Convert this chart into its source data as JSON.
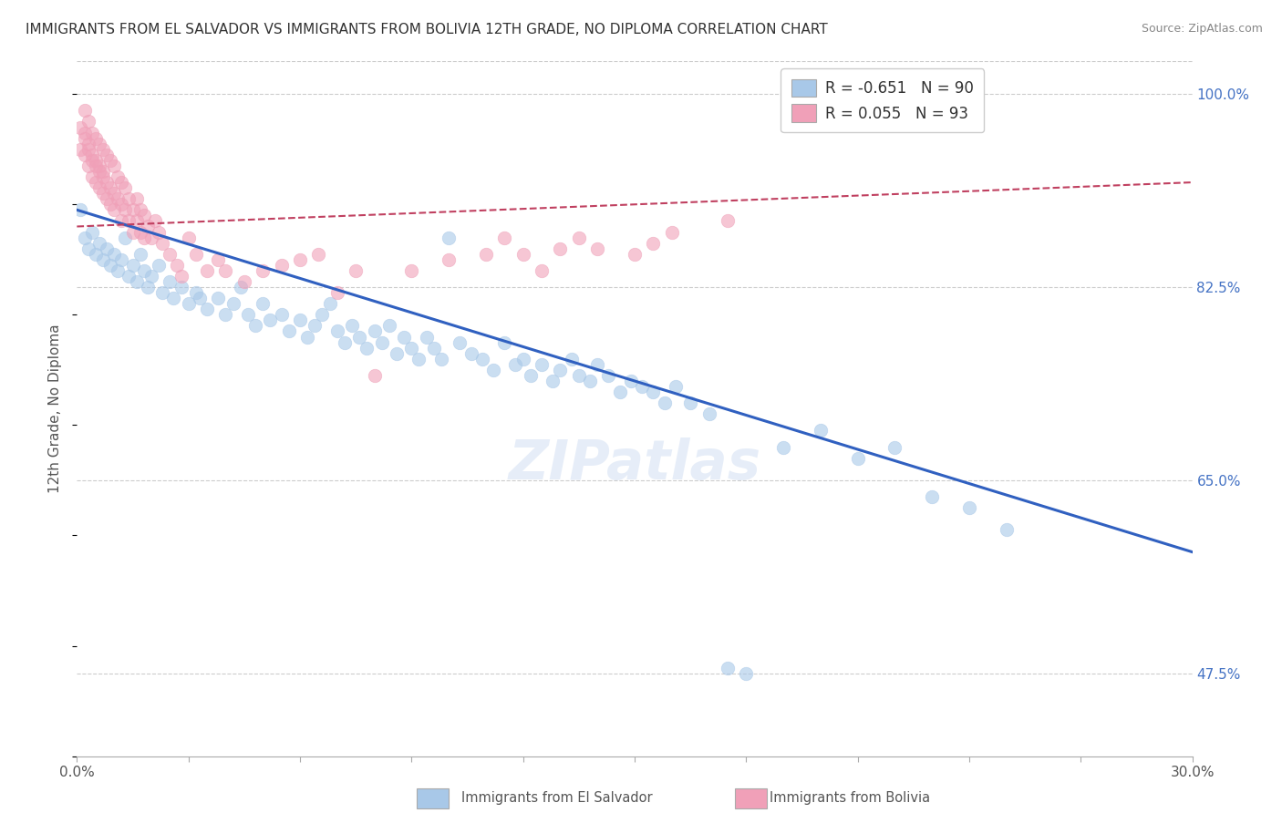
{
  "title": "IMMIGRANTS FROM EL SALVADOR VS IMMIGRANTS FROM BOLIVIA 12TH GRADE, NO DIPLOMA CORRELATION CHART",
  "source": "Source: ZipAtlas.com",
  "ylabel": "12th Grade, No Diploma",
  "legend_entry1_r": "R = ",
  "legend_entry1_rval": "-0.651",
  "legend_entry1_n": "  N = ",
  "legend_entry1_nval": "90",
  "legend_entry2_r": "R = ",
  "legend_entry2_rval": "0.055",
  "legend_entry2_n": "  N = ",
  "legend_entry2_nval": "93",
  "legend_label1": "Immigrants from El Salvador",
  "legend_label2": "Immigrants from Bolivia",
  "blue_color": "#A8C8E8",
  "pink_color": "#F0A0B8",
  "blue_line_color": "#3060C0",
  "pink_line_color": "#C04060",
  "xlim": [
    0.0,
    0.3
  ],
  "ylim": [
    0.4,
    1.03
  ],
  "yticks": [
    0.475,
    0.65,
    0.825,
    1.0
  ],
  "blue_line_x0": 0.0,
  "blue_line_y0": 0.895,
  "blue_line_x1": 0.3,
  "blue_line_y1": 0.585,
  "pink_line_x0": 0.0,
  "pink_line_y0": 0.88,
  "pink_line_x1": 0.3,
  "pink_line_y1": 0.92,
  "blue_scatter": [
    [
      0.001,
      0.895
    ],
    [
      0.002,
      0.87
    ],
    [
      0.003,
      0.86
    ],
    [
      0.004,
      0.875
    ],
    [
      0.005,
      0.855
    ],
    [
      0.006,
      0.865
    ],
    [
      0.007,
      0.85
    ],
    [
      0.008,
      0.86
    ],
    [
      0.009,
      0.845
    ],
    [
      0.01,
      0.855
    ],
    [
      0.011,
      0.84
    ],
    [
      0.012,
      0.85
    ],
    [
      0.013,
      0.87
    ],
    [
      0.014,
      0.835
    ],
    [
      0.015,
      0.845
    ],
    [
      0.016,
      0.83
    ],
    [
      0.017,
      0.855
    ],
    [
      0.018,
      0.84
    ],
    [
      0.019,
      0.825
    ],
    [
      0.02,
      0.835
    ],
    [
      0.022,
      0.845
    ],
    [
      0.023,
      0.82
    ],
    [
      0.025,
      0.83
    ],
    [
      0.026,
      0.815
    ],
    [
      0.028,
      0.825
    ],
    [
      0.03,
      0.81
    ],
    [
      0.032,
      0.82
    ],
    [
      0.033,
      0.815
    ],
    [
      0.035,
      0.805
    ],
    [
      0.038,
      0.815
    ],
    [
      0.04,
      0.8
    ],
    [
      0.042,
      0.81
    ],
    [
      0.044,
      0.825
    ],
    [
      0.046,
      0.8
    ],
    [
      0.048,
      0.79
    ],
    [
      0.05,
      0.81
    ],
    [
      0.052,
      0.795
    ],
    [
      0.055,
      0.8
    ],
    [
      0.057,
      0.785
    ],
    [
      0.06,
      0.795
    ],
    [
      0.062,
      0.78
    ],
    [
      0.064,
      0.79
    ],
    [
      0.066,
      0.8
    ],
    [
      0.068,
      0.81
    ],
    [
      0.07,
      0.785
    ],
    [
      0.072,
      0.775
    ],
    [
      0.074,
      0.79
    ],
    [
      0.076,
      0.78
    ],
    [
      0.078,
      0.77
    ],
    [
      0.08,
      0.785
    ],
    [
      0.082,
      0.775
    ],
    [
      0.084,
      0.79
    ],
    [
      0.086,
      0.765
    ],
    [
      0.088,
      0.78
    ],
    [
      0.09,
      0.77
    ],
    [
      0.092,
      0.76
    ],
    [
      0.094,
      0.78
    ],
    [
      0.096,
      0.77
    ],
    [
      0.098,
      0.76
    ],
    [
      0.1,
      0.87
    ],
    [
      0.103,
      0.775
    ],
    [
      0.106,
      0.765
    ],
    [
      0.109,
      0.76
    ],
    [
      0.112,
      0.75
    ],
    [
      0.115,
      0.775
    ],
    [
      0.118,
      0.755
    ],
    [
      0.12,
      0.76
    ],
    [
      0.122,
      0.745
    ],
    [
      0.125,
      0.755
    ],
    [
      0.128,
      0.74
    ],
    [
      0.13,
      0.75
    ],
    [
      0.133,
      0.76
    ],
    [
      0.135,
      0.745
    ],
    [
      0.138,
      0.74
    ],
    [
      0.14,
      0.755
    ],
    [
      0.143,
      0.745
    ],
    [
      0.146,
      0.73
    ],
    [
      0.149,
      0.74
    ],
    [
      0.152,
      0.735
    ],
    [
      0.155,
      0.73
    ],
    [
      0.158,
      0.72
    ],
    [
      0.161,
      0.735
    ],
    [
      0.165,
      0.72
    ],
    [
      0.17,
      0.71
    ],
    [
      0.175,
      0.48
    ],
    [
      0.18,
      0.475
    ],
    [
      0.19,
      0.68
    ],
    [
      0.2,
      0.695
    ],
    [
      0.21,
      0.67
    ],
    [
      0.22,
      0.68
    ],
    [
      0.23,
      0.635
    ],
    [
      0.24,
      0.625
    ],
    [
      0.25,
      0.605
    ]
  ],
  "pink_scatter": [
    [
      0.001,
      0.97
    ],
    [
      0.001,
      0.95
    ],
    [
      0.002,
      0.985
    ],
    [
      0.002,
      0.965
    ],
    [
      0.002,
      0.945
    ],
    [
      0.002,
      0.96
    ],
    [
      0.003,
      0.975
    ],
    [
      0.003,
      0.955
    ],
    [
      0.003,
      0.935
    ],
    [
      0.003,
      0.95
    ],
    [
      0.004,
      0.965
    ],
    [
      0.004,
      0.945
    ],
    [
      0.004,
      0.925
    ],
    [
      0.004,
      0.94
    ],
    [
      0.005,
      0.96
    ],
    [
      0.005,
      0.94
    ],
    [
      0.005,
      0.92
    ],
    [
      0.005,
      0.935
    ],
    [
      0.006,
      0.955
    ],
    [
      0.006,
      0.935
    ],
    [
      0.006,
      0.915
    ],
    [
      0.006,
      0.93
    ],
    [
      0.007,
      0.95
    ],
    [
      0.007,
      0.93
    ],
    [
      0.007,
      0.91
    ],
    [
      0.007,
      0.925
    ],
    [
      0.008,
      0.945
    ],
    [
      0.008,
      0.92
    ],
    [
      0.008,
      0.905
    ],
    [
      0.009,
      0.94
    ],
    [
      0.009,
      0.915
    ],
    [
      0.009,
      0.9
    ],
    [
      0.01,
      0.935
    ],
    [
      0.01,
      0.91
    ],
    [
      0.01,
      0.895
    ],
    [
      0.011,
      0.925
    ],
    [
      0.011,
      0.905
    ],
    [
      0.012,
      0.92
    ],
    [
      0.012,
      0.9
    ],
    [
      0.012,
      0.885
    ],
    [
      0.013,
      0.915
    ],
    [
      0.013,
      0.895
    ],
    [
      0.014,
      0.905
    ],
    [
      0.014,
      0.885
    ],
    [
      0.015,
      0.895
    ],
    [
      0.015,
      0.875
    ],
    [
      0.016,
      0.905
    ],
    [
      0.016,
      0.885
    ],
    [
      0.017,
      0.895
    ],
    [
      0.017,
      0.875
    ],
    [
      0.018,
      0.89
    ],
    [
      0.018,
      0.87
    ],
    [
      0.019,
      0.88
    ],
    [
      0.02,
      0.87
    ],
    [
      0.021,
      0.885
    ],
    [
      0.022,
      0.875
    ],
    [
      0.023,
      0.865
    ],
    [
      0.025,
      0.855
    ],
    [
      0.027,
      0.845
    ],
    [
      0.028,
      0.835
    ],
    [
      0.03,
      0.87
    ],
    [
      0.032,
      0.855
    ],
    [
      0.035,
      0.84
    ],
    [
      0.038,
      0.85
    ],
    [
      0.04,
      0.84
    ],
    [
      0.045,
      0.83
    ],
    [
      0.05,
      0.84
    ],
    [
      0.055,
      0.845
    ],
    [
      0.06,
      0.85
    ],
    [
      0.065,
      0.855
    ],
    [
      0.07,
      0.82
    ],
    [
      0.075,
      0.84
    ],
    [
      0.08,
      0.745
    ],
    [
      0.09,
      0.84
    ],
    [
      0.1,
      0.85
    ],
    [
      0.11,
      0.855
    ],
    [
      0.115,
      0.87
    ],
    [
      0.12,
      0.855
    ],
    [
      0.125,
      0.84
    ],
    [
      0.13,
      0.86
    ],
    [
      0.135,
      0.87
    ],
    [
      0.14,
      0.86
    ],
    [
      0.15,
      0.855
    ],
    [
      0.155,
      0.865
    ],
    [
      0.16,
      0.875
    ],
    [
      0.175,
      0.885
    ]
  ]
}
